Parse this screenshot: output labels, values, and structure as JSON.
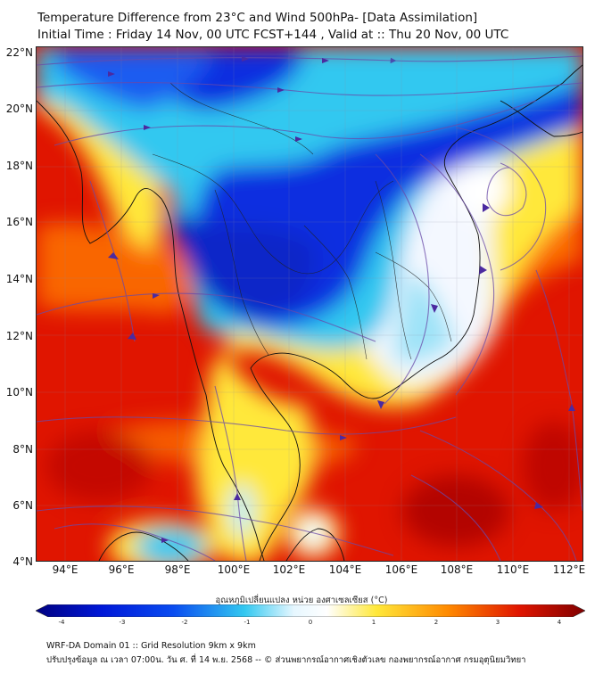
{
  "title": {
    "line1": "Temperature Difference from 23°C and Wind 500hPa- [Data Assimilation]",
    "line2": "Initial Time : Friday 14 Nov, 00 UTC FCST+144 , Valid at ::  Thu 20 Nov, 00 UTC"
  },
  "axes": {
    "lat_labels": [
      "22°N",
      "20°N",
      "18°N",
      "16°N",
      "14°N",
      "12°N",
      "10°N",
      "8°N",
      "6°N",
      "4°N"
    ],
    "lon_labels": [
      "94°E",
      "96°E",
      "98°E",
      "100°E",
      "102°E",
      "104°E",
      "106°E",
      "108°E",
      "110°E",
      "112°E"
    ]
  },
  "colorbar": {
    "title": "อุณหภูมิเปลี่ยนแปลง หน่วย องศาเซลเซียส (°C)",
    "ticks": [
      "-4",
      "-3",
      "-2",
      "-1",
      "0",
      "1",
      "2",
      "3",
      "4"
    ]
  },
  "footer": {
    "line1": "WRF-DA Domain 01 :: Grid Resolution 9km x 9km",
    "line2": "ปรับปรุงข้อมูล ณ เวลา 07:00น. วัน ศ. ที่ 14 พ.ย. 2568 -- © ส่วนพยากรณ์อากาศเชิงตัวเลข กองพยากรณ์อากาศ กรมอุตุนิยมวิทยา"
  },
  "colors": {
    "deep_blue": "#0a2ee0",
    "light_blue": "#33c8f0",
    "white": "#f4f8ff",
    "yellow": "#ffe83a",
    "orange": "#ff8a00",
    "red": "#e01500",
    "dark_red": "#a80000",
    "streamline": "#6a4aa8",
    "coast": "#111111"
  }
}
